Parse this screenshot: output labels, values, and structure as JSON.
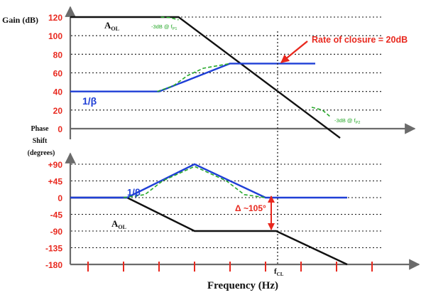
{
  "figure": {
    "xlabel": "Frequency (Hz)",
    "fcl_label": "f",
    "fcl_sub": "CL",
    "colors": {
      "axis": "#6b6b6b",
      "grid": "#111111",
      "tick_red": "#e8281e",
      "aol": "#111111",
      "beta": "#1f3fd6",
      "actual": "#27a82a",
      "annotation": "#e8281e"
    }
  },
  "chart_data": [
    {
      "type": "line",
      "panel": "gain",
      "ylabel": "Gain (dB)",
      "y_ticks": [
        120,
        100,
        80,
        60,
        40,
        20,
        0
      ],
      "ylim": [
        0,
        120
      ],
      "x_scale": "log (decades, unlabeled)",
      "grid": true,
      "series": [
        {
          "name": "A",
          "name_sub": "OL",
          "points": [
            [
              0,
              120
            ],
            [
              3.05,
              120
            ],
            [
              7.6,
              -10
            ]
          ]
        },
        {
          "name": "1/β",
          "points": [
            [
              0,
              40
            ],
            [
              2.5,
              40
            ],
            [
              4.5,
              70
            ],
            [
              6.9,
              70
            ]
          ]
        },
        {
          "kind": "actual",
          "points": [
            [
              2.45,
              40
            ],
            [
              2.9,
              46
            ],
            [
              3.3,
              57
            ],
            [
              3.75,
              65
            ],
            [
              4.5,
              70
            ]
          ]
        },
        {
          "kind": "actual",
          "points": [
            [
              2.55,
              120
            ],
            [
              2.8,
              119.5
            ],
            [
              3.05,
              117
            ]
          ]
        },
        {
          "kind": "actual",
          "points": [
            [
              6.8,
              23
            ],
            [
              7.1,
              20
            ],
            [
              7.35,
              12
            ]
          ]
        }
      ],
      "annotations": [
        {
          "text": "Rate of closure = 20dB"
        },
        {
          "text": "-3dB @ f",
          "sub": "P1"
        },
        {
          "text": "-3dB @ f",
          "sub": "P2"
        }
      ]
    },
    {
      "type": "line",
      "panel": "phase",
      "ylabel": "Phase Shift (degrees)",
      "y_ticks": [
        "+90",
        "+45",
        "0",
        "-45",
        "-90",
        "-135",
        "-180"
      ],
      "ylim": [
        -180,
        90
      ],
      "x_scale": "log (decades, unlabeled)",
      "grid": true,
      "series": [
        {
          "name": "A",
          "name_sub": "OL",
          "points": [
            [
              0,
              0
            ],
            [
              1.6,
              0
            ],
            [
              3.5,
              -90
            ],
            [
              5.8,
              -90
            ],
            [
              7.8,
              -180
            ]
          ]
        },
        {
          "name": "1/β",
          "points": [
            [
              0,
              0
            ],
            [
              1.6,
              0
            ],
            [
              3.5,
              90
            ],
            [
              5.5,
              0
            ],
            [
              7.8,
              0
            ]
          ]
        },
        {
          "kind": "actual",
          "points": [
            [
              1.5,
              0
            ],
            [
              2.1,
              8
            ],
            [
              2.6,
              45
            ],
            [
              3.5,
              84
            ],
            [
              4.4,
              45
            ],
            [
              4.9,
              8
            ],
            [
              5.5,
              0
            ]
          ]
        }
      ],
      "annotations": [
        {
          "text": "Δ ~105°"
        }
      ]
    }
  ]
}
